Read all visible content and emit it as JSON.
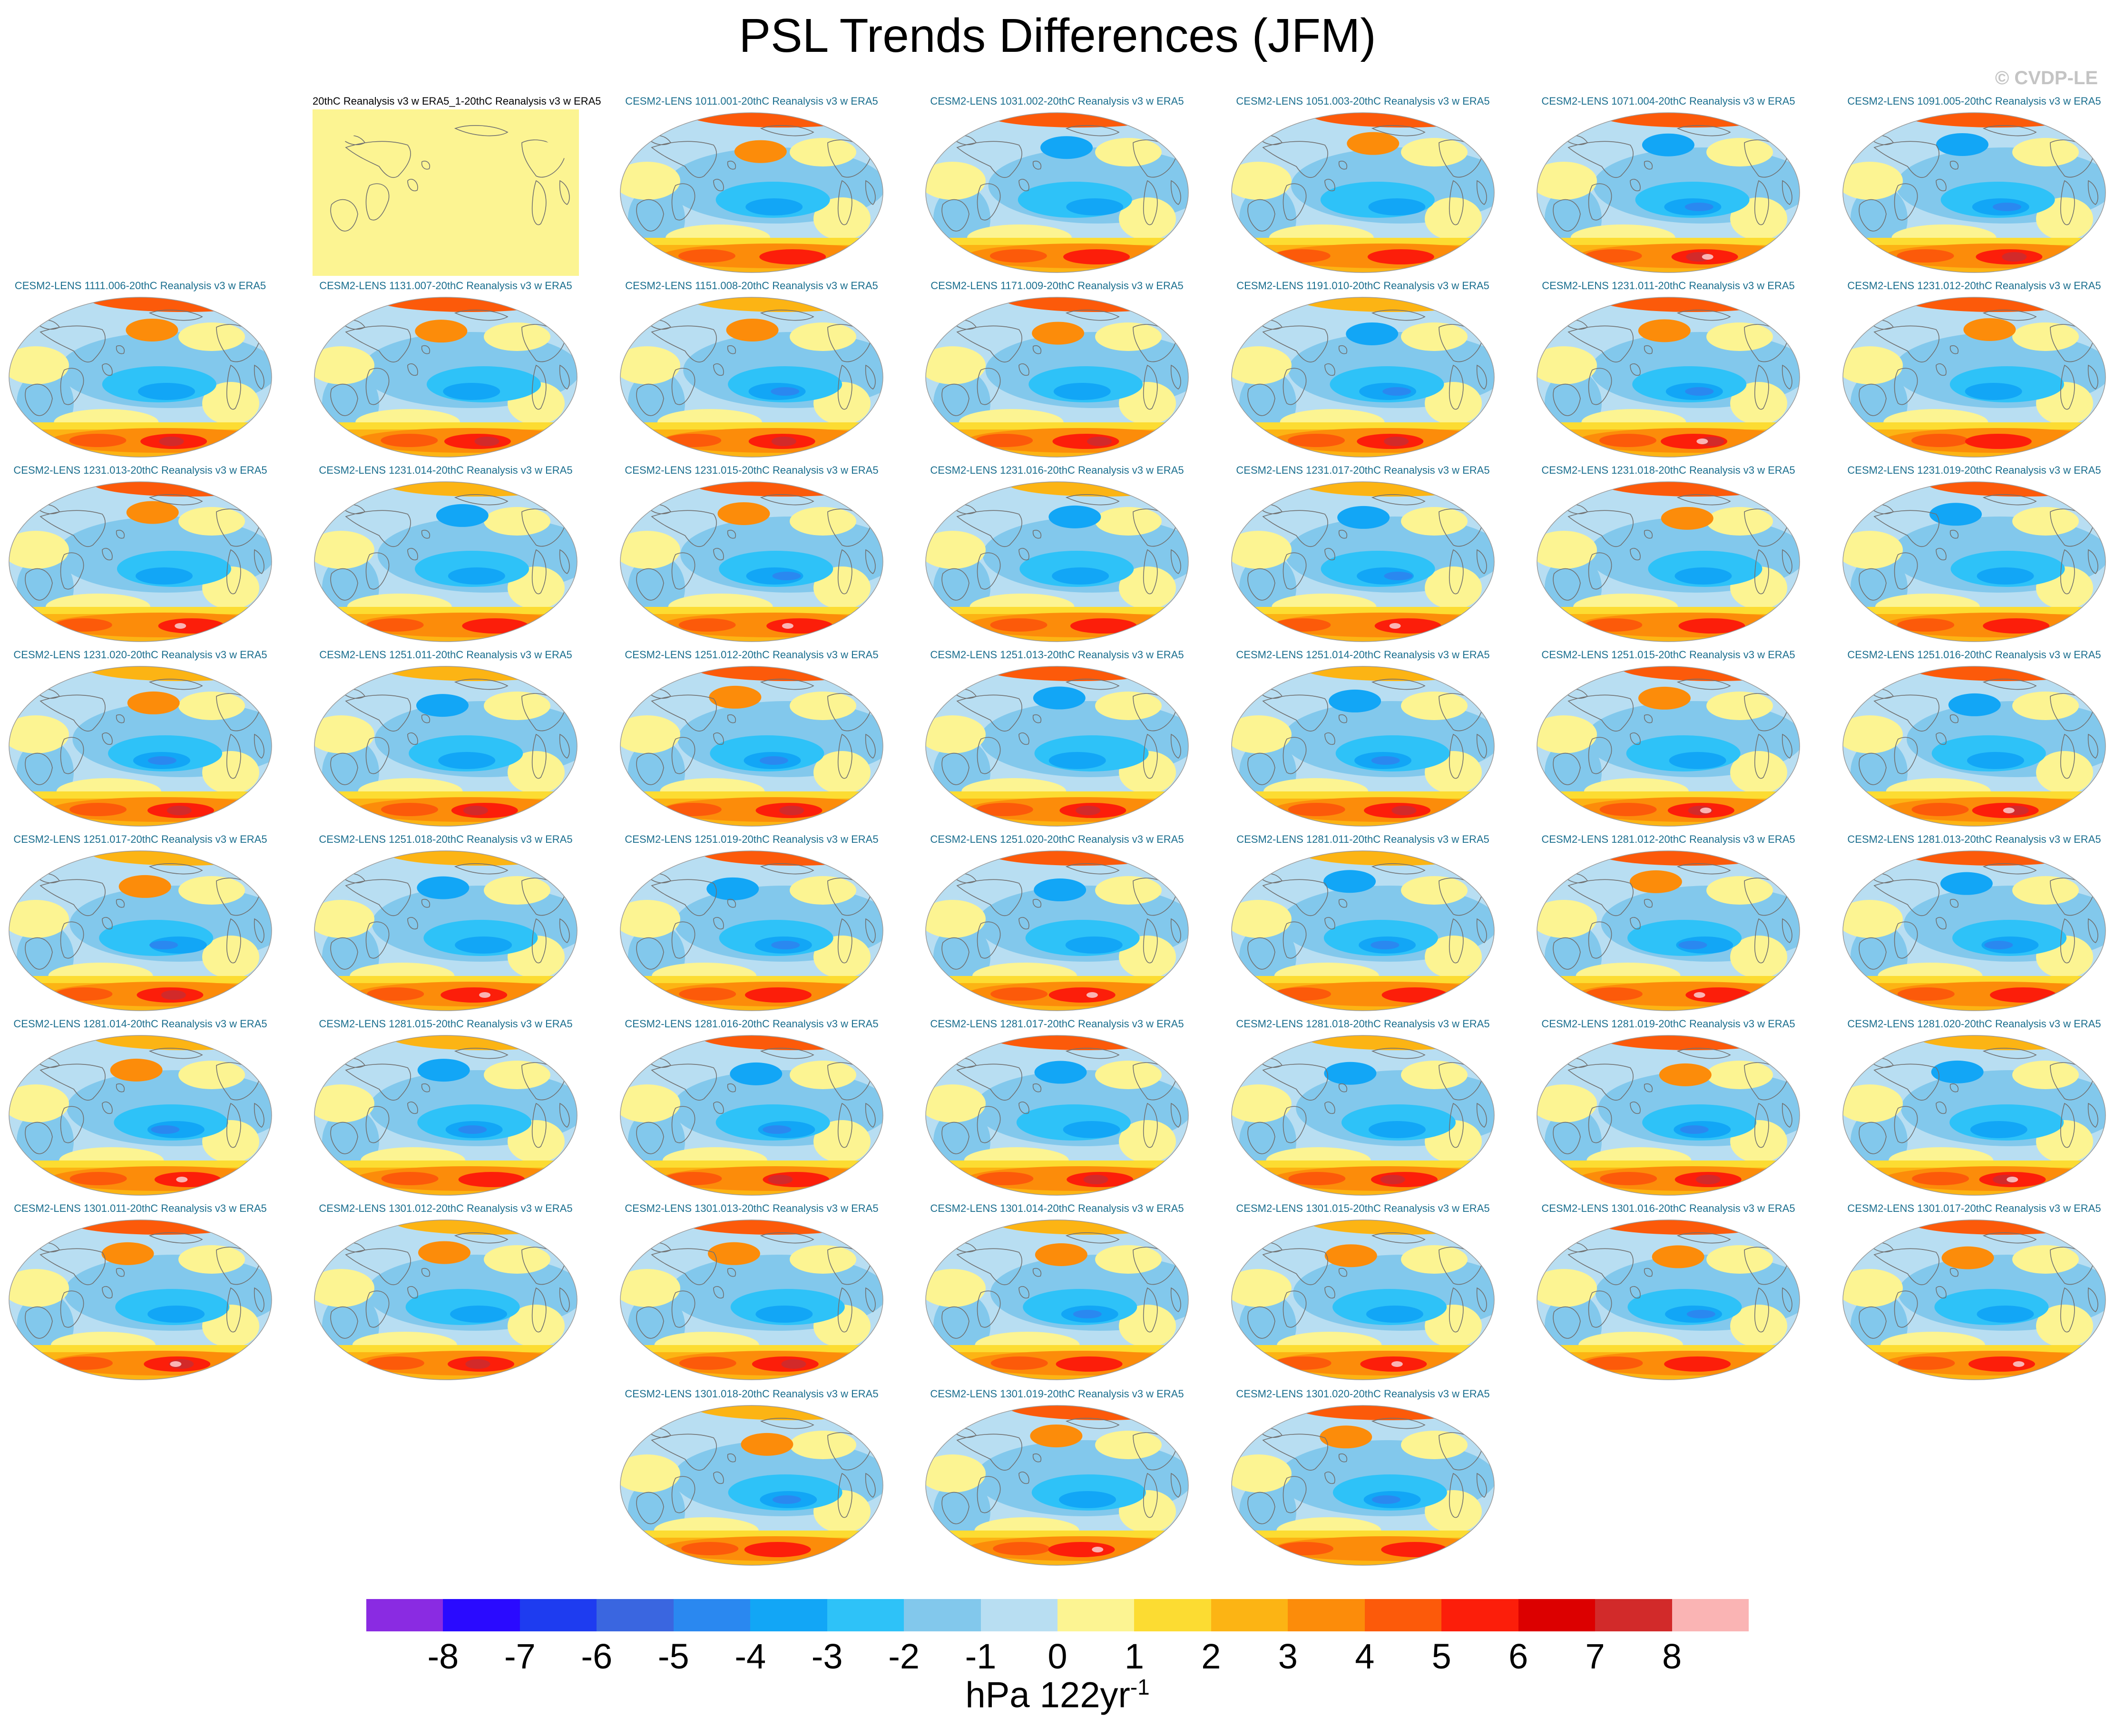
{
  "title": "PSL Trends Differences (JFM)",
  "credit": "© CVDP-LE",
  "colors": {
    "label_text": "#1a6e8e",
    "land_outline": "#707070",
    "map_border": "#9a9a9a"
  },
  "panels": [
    {
      "label": "20thC Reanalysis v3 w ERA5_1-20thC Reanalysis v3 w ERA5",
      "kind": "observation"
    },
    {
      "label": "CESM2-LENS 1011.001-20thC Reanalysis v3 w ERA5",
      "kind": "member"
    },
    {
      "label": "CESM2-LENS 1031.002-20thC Reanalysis v3 w ERA5",
      "kind": "member"
    },
    {
      "label": "CESM2-LENS 1051.003-20thC Reanalysis v3 w ERA5",
      "kind": "member"
    },
    {
      "label": "CESM2-LENS 1071.004-20thC Reanalysis v3 w ERA5",
      "kind": "member"
    },
    {
      "label": "CESM2-LENS 1091.005-20thC Reanalysis v3 w ERA5",
      "kind": "member"
    },
    {
      "label": "CESM2-LENS 1111.006-20thC Reanalysis v3 w ERA5",
      "kind": "member"
    },
    {
      "label": "CESM2-LENS 1131.007-20thC Reanalysis v3 w ERA5",
      "kind": "member"
    },
    {
      "label": "CESM2-LENS 1151.008-20thC Reanalysis v3 w ERA5",
      "kind": "member"
    },
    {
      "label": "CESM2-LENS 1171.009-20thC Reanalysis v3 w ERA5",
      "kind": "member"
    },
    {
      "label": "CESM2-LENS 1191.010-20thC Reanalysis v3 w ERA5",
      "kind": "member"
    },
    {
      "label": "CESM2-LENS 1231.011-20thC Reanalysis v3 w ERA5",
      "kind": "member"
    },
    {
      "label": "CESM2-LENS 1231.012-20thC Reanalysis v3 w ERA5",
      "kind": "member"
    },
    {
      "label": "CESM2-LENS 1231.013-20thC Reanalysis v3 w ERA5",
      "kind": "member"
    },
    {
      "label": "CESM2-LENS 1231.014-20thC Reanalysis v3 w ERA5",
      "kind": "member"
    },
    {
      "label": "CESM2-LENS 1231.015-20thC Reanalysis v3 w ERA5",
      "kind": "member"
    },
    {
      "label": "CESM2-LENS 1231.016-20thC Reanalysis v3 w ERA5",
      "kind": "member"
    },
    {
      "label": "CESM2-LENS 1231.017-20thC Reanalysis v3 w ERA5",
      "kind": "member"
    },
    {
      "label": "CESM2-LENS 1231.018-20thC Reanalysis v3 w ERA5",
      "kind": "member"
    },
    {
      "label": "CESM2-LENS 1231.019-20thC Reanalysis v3 w ERA5",
      "kind": "member"
    },
    {
      "label": "CESM2-LENS 1231.020-20thC Reanalysis v3 w ERA5",
      "kind": "member"
    },
    {
      "label": "CESM2-LENS 1251.011-20thC Reanalysis v3 w ERA5",
      "kind": "member"
    },
    {
      "label": "CESM2-LENS 1251.012-20thC Reanalysis v3 w ERA5",
      "kind": "member"
    },
    {
      "label": "CESM2-LENS 1251.013-20thC Reanalysis v3 w ERA5",
      "kind": "member"
    },
    {
      "label": "CESM2-LENS 1251.014-20thC Reanalysis v3 w ERA5",
      "kind": "member"
    },
    {
      "label": "CESM2-LENS 1251.015-20thC Reanalysis v3 w ERA5",
      "kind": "member"
    },
    {
      "label": "CESM2-LENS 1251.016-20thC Reanalysis v3 w ERA5",
      "kind": "member"
    },
    {
      "label": "CESM2-LENS 1251.017-20thC Reanalysis v3 w ERA5",
      "kind": "member"
    },
    {
      "label": "CESM2-LENS 1251.018-20thC Reanalysis v3 w ERA5",
      "kind": "member"
    },
    {
      "label": "CESM2-LENS 1251.019-20thC Reanalysis v3 w ERA5",
      "kind": "member"
    },
    {
      "label": "CESM2-LENS 1251.020-20thC Reanalysis v3 w ERA5",
      "kind": "member"
    },
    {
      "label": "CESM2-LENS 1281.011-20thC Reanalysis v3 w ERA5",
      "kind": "member"
    },
    {
      "label": "CESM2-LENS 1281.012-20thC Reanalysis v3 w ERA5",
      "kind": "member"
    },
    {
      "label": "CESM2-LENS 1281.013-20thC Reanalysis v3 w ERA5",
      "kind": "member"
    },
    {
      "label": "CESM2-LENS 1281.014-20thC Reanalysis v3 w ERA5",
      "kind": "member"
    },
    {
      "label": "CESM2-LENS 1281.015-20thC Reanalysis v3 w ERA5",
      "kind": "member"
    },
    {
      "label": "CESM2-LENS 1281.016-20thC Reanalysis v3 w ERA5",
      "kind": "member"
    },
    {
      "label": "CESM2-LENS 1281.017-20thC Reanalysis v3 w ERA5",
      "kind": "member"
    },
    {
      "label": "CESM2-LENS 1281.018-20thC Reanalysis v3 w ERA5",
      "kind": "member"
    },
    {
      "label": "CESM2-LENS 1281.019-20thC Reanalysis v3 w ERA5",
      "kind": "member"
    },
    {
      "label": "CESM2-LENS 1281.020-20thC Reanalysis v3 w ERA5",
      "kind": "member"
    },
    {
      "label": "CESM2-LENS 1301.011-20thC Reanalysis v3 w ERA5",
      "kind": "member"
    },
    {
      "label": "CESM2-LENS 1301.012-20thC Reanalysis v3 w ERA5",
      "kind": "member"
    },
    {
      "label": "CESM2-LENS 1301.013-20thC Reanalysis v3 w ERA5",
      "kind": "member"
    },
    {
      "label": "CESM2-LENS 1301.014-20thC Reanalysis v3 w ERA5",
      "kind": "member"
    },
    {
      "label": "CESM2-LENS 1301.015-20thC Reanalysis v3 w ERA5",
      "kind": "member"
    },
    {
      "label": "CESM2-LENS 1301.016-20thC Reanalysis v3 w ERA5",
      "kind": "member"
    },
    {
      "label": "CESM2-LENS 1301.017-20thC Reanalysis v3 w ERA5",
      "kind": "member"
    },
    {
      "label": "CESM2-LENS 1301.018-20thC Reanalysis v3 w ERA5",
      "kind": "member"
    },
    {
      "label": "CESM2-LENS 1301.019-20thC Reanalysis v3 w ERA5",
      "kind": "member"
    },
    {
      "label": "CESM2-LENS 1301.020-20thC Reanalysis v3 w ERA5",
      "kind": "member"
    }
  ],
  "colorbar": {
    "colors": [
      "#8a2be2",
      "#2a0aff",
      "#1e3cf0",
      "#3a66e0",
      "#2a88f0",
      "#12a6f6",
      "#2ec2f8",
      "#82c8ec",
      "#b8def2",
      "#fcf492",
      "#fcdc32",
      "#fcb414",
      "#fc8c0a",
      "#fc5a0a",
      "#fc1e0a",
      "#dc0000",
      "#d22a2a",
      "#fab4b4"
    ],
    "ticks": [
      "-8",
      "-7",
      "-6",
      "-5",
      "-4",
      "-3",
      "-2",
      "-1",
      "0",
      "1",
      "2",
      "3",
      "4",
      "5",
      "6",
      "7",
      "8"
    ],
    "units": "hPa 122yr",
    "units_exponent": "-1"
  }
}
